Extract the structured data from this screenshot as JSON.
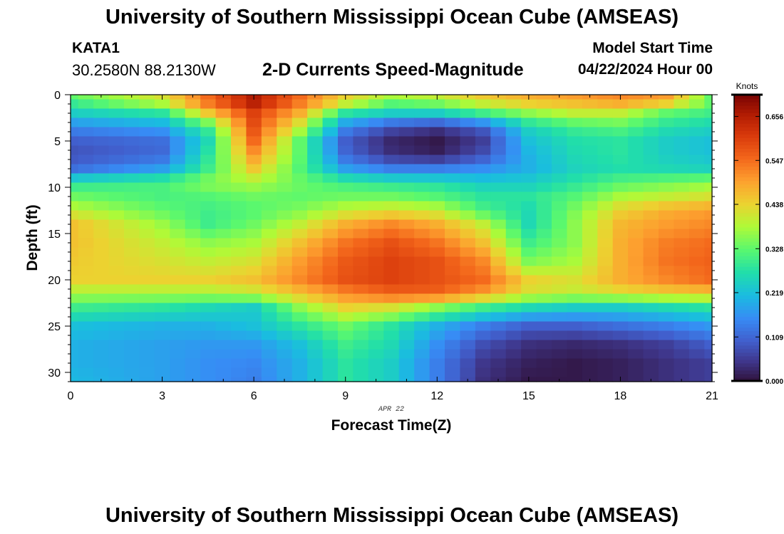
{
  "header": {
    "title": "University of Southern Mississippi Ocean Cube (AMSEAS)",
    "station": "KATA1",
    "coords": "30.2580N  88.2130W",
    "subtitle": "2-D Currents Speed-Magnitude",
    "start_label": "Model Start Time",
    "start_value": "04/22/2024 Hour 00"
  },
  "footer": {
    "title": "University of Southern Mississippi Ocean Cube (AMSEAS)"
  },
  "chart_data": {
    "type": "heatmap",
    "title": "2-D Currents Speed-Magnitude",
    "xlabel": "Forecast Time(Z)",
    "ylabel": "Depth (ft)",
    "date_label": "APR 22",
    "x_range": [
      0,
      21
    ],
    "y_range": [
      0,
      31
    ],
    "x_ticks": [
      0,
      3,
      6,
      9,
      12,
      15,
      18,
      21
    ],
    "y_ticks": [
      0,
      5,
      10,
      15,
      20,
      25,
      30
    ],
    "colorbar": {
      "label": "Knots",
      "min": 0.0,
      "max": 0.71,
      "tick_values": [
        0.0,
        0.109,
        0.219,
        0.328,
        0.438,
        0.547,
        0.656
      ],
      "tick_labels": [
        "0.000",
        "0.109",
        "0.219",
        "0.328",
        "0.438",
        "0.547",
        "0.656"
      ]
    },
    "grid_note": "speed (knots) sampled on a regular grid; 43 time steps (every 0.5 h) x 32 depth levels (every 1 ft)",
    "times_h": [
      0,
      3,
      4.5,
      6,
      7.5,
      9,
      10.5,
      12,
      13.5,
      15,
      16.5,
      18,
      19.5,
      21
    ],
    "depths_ft": [
      0,
      1,
      2,
      3.5,
      5,
      6.5,
      8,
      9.5,
      11,
      12.5,
      14,
      16,
      18,
      20,
      21.5,
      23,
      25,
      27,
      29,
      31
    ],
    "speed_knots": [
      [
        0.33,
        0.42,
        0.55,
        0.66,
        0.55,
        0.44,
        0.38,
        0.4,
        0.45,
        0.48,
        0.5,
        0.52,
        0.5,
        0.33
      ],
      [
        0.29,
        0.38,
        0.53,
        0.65,
        0.53,
        0.4,
        0.32,
        0.34,
        0.4,
        0.44,
        0.46,
        0.48,
        0.44,
        0.33
      ],
      [
        0.24,
        0.28,
        0.45,
        0.6,
        0.48,
        0.28,
        0.24,
        0.24,
        0.3,
        0.36,
        0.4,
        0.4,
        0.33,
        0.3
      ],
      [
        0.15,
        0.18,
        0.3,
        0.58,
        0.4,
        0.15,
        0.08,
        0.05,
        0.1,
        0.25,
        0.3,
        0.32,
        0.27,
        0.25
      ],
      [
        0.1,
        0.12,
        0.26,
        0.55,
        0.33,
        0.1,
        0.03,
        0.01,
        0.06,
        0.22,
        0.27,
        0.28,
        0.24,
        0.22
      ],
      [
        0.08,
        0.11,
        0.28,
        0.5,
        0.33,
        0.11,
        0.04,
        0.02,
        0.08,
        0.2,
        0.26,
        0.28,
        0.24,
        0.22
      ],
      [
        0.12,
        0.18,
        0.3,
        0.45,
        0.32,
        0.18,
        0.14,
        0.14,
        0.16,
        0.2,
        0.25,
        0.27,
        0.26,
        0.25
      ],
      [
        0.28,
        0.31,
        0.36,
        0.38,
        0.34,
        0.3,
        0.28,
        0.27,
        0.24,
        0.24,
        0.28,
        0.32,
        0.34,
        0.36
      ],
      [
        0.34,
        0.31,
        0.32,
        0.34,
        0.33,
        0.34,
        0.34,
        0.32,
        0.28,
        0.28,
        0.32,
        0.38,
        0.4,
        0.42
      ],
      [
        0.4,
        0.33,
        0.3,
        0.32,
        0.35,
        0.4,
        0.42,
        0.4,
        0.31,
        0.26,
        0.35,
        0.44,
        0.48,
        0.5
      ],
      [
        0.46,
        0.37,
        0.3,
        0.34,
        0.4,
        0.48,
        0.52,
        0.48,
        0.4,
        0.26,
        0.36,
        0.47,
        0.5,
        0.52
      ],
      [
        0.46,
        0.4,
        0.36,
        0.38,
        0.46,
        0.54,
        0.58,
        0.54,
        0.46,
        0.3,
        0.36,
        0.48,
        0.53,
        0.55
      ],
      [
        0.45,
        0.42,
        0.4,
        0.42,
        0.5,
        0.57,
        0.6,
        0.58,
        0.52,
        0.35,
        0.38,
        0.48,
        0.54,
        0.56
      ],
      [
        0.44,
        0.44,
        0.44,
        0.46,
        0.52,
        0.58,
        0.6,
        0.58,
        0.55,
        0.44,
        0.42,
        0.48,
        0.52,
        0.55
      ],
      [
        0.38,
        0.38,
        0.38,
        0.4,
        0.46,
        0.52,
        0.56,
        0.56,
        0.5,
        0.42,
        0.4,
        0.42,
        0.44,
        0.45
      ],
      [
        0.3,
        0.28,
        0.26,
        0.24,
        0.36,
        0.44,
        0.42,
        0.36,
        0.3,
        0.26,
        0.24,
        0.24,
        0.26,
        0.28
      ],
      [
        0.22,
        0.2,
        0.2,
        0.22,
        0.28,
        0.34,
        0.28,
        0.2,
        0.14,
        0.1,
        0.1,
        0.12,
        0.14,
        0.17
      ],
      [
        0.2,
        0.18,
        0.17,
        0.17,
        0.22,
        0.3,
        0.26,
        0.16,
        0.08,
        0.04,
        0.03,
        0.04,
        0.06,
        0.1
      ],
      [
        0.2,
        0.18,
        0.16,
        0.15,
        0.2,
        0.28,
        0.24,
        0.14,
        0.05,
        0.02,
        0.01,
        0.02,
        0.04,
        0.06
      ],
      [
        0.21,
        0.18,
        0.16,
        0.14,
        0.2,
        0.28,
        0.24,
        0.14,
        0.04,
        0.01,
        0.01,
        0.02,
        0.04,
        0.06
      ]
    ]
  }
}
